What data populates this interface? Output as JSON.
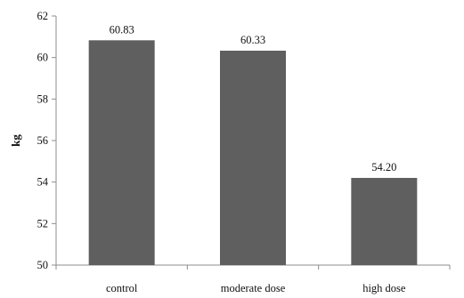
{
  "chart_data": {
    "type": "bar",
    "categories": [
      "control",
      "moderate dose",
      "high dose"
    ],
    "values": [
      60.83,
      60.33,
      54.2
    ],
    "value_labels": [
      "60.83",
      "60.33",
      "54.20"
    ],
    "title": "",
    "xlabel": "",
    "ylabel": "kg",
    "ylim": [
      50,
      62
    ],
    "yticks": [
      50,
      52,
      54,
      56,
      58,
      60,
      62
    ],
    "grid": false,
    "legend": "none",
    "bar_color": "#5f5f5f",
    "axis_color": "#8c8c8c"
  }
}
